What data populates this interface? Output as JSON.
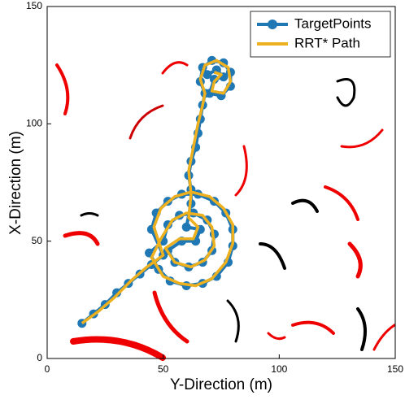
{
  "chart_data": {
    "type": "line",
    "xlabel": "Y-Direction (m)",
    "ylabel": "X-Direction (m)",
    "xlim": [
      0,
      150
    ],
    "ylim": [
      0,
      150
    ],
    "xticks": [
      0,
      50,
      100,
      150
    ],
    "yticks": [
      0,
      50,
      100,
      150
    ],
    "legend": "upper right",
    "series": [
      {
        "name": "TargetPoints",
        "color": "#1f77b4",
        "marker": true,
        "x": [
          15,
          20,
          25,
          30,
          35,
          40,
          45,
          50,
          45,
          47,
          52,
          58,
          65,
          72,
          77,
          80,
          80,
          78,
          73,
          67,
          60,
          53,
          48,
          44,
          50,
          52,
          57,
          63,
          69,
          72,
          71,
          67,
          61,
          55,
          52,
          58,
          64,
          66,
          60,
          62,
          62,
          61,
          62,
          64,
          65,
          66,
          67,
          68,
          66,
          67,
          71,
          76,
          79,
          79,
          75,
          70,
          72,
          76,
          73,
          69
        ],
        "values": [
          15,
          19,
          23,
          28,
          32,
          36,
          40,
          44,
          55,
          62,
          67,
          70,
          70,
          67,
          62,
          55,
          48,
          41,
          35,
          32,
          31,
          33,
          38,
          45,
          50,
          57,
          61,
          62,
          59,
          53,
          46,
          41,
          39,
          41,
          46,
          50,
          50,
          55,
          56,
          66,
          72,
          78,
          84,
          90,
          96,
          102,
          108,
          113,
          118,
          124,
          127,
          126,
          122,
          116,
          112,
          113,
          119,
          120,
          123,
          121
        ]
      },
      {
        "name": "RRT* Path",
        "color": "#edb120",
        "marker": false,
        "x": [
          15,
          22,
          29,
          36,
          43,
          50,
          46,
          49,
          55,
          62,
          70,
          76,
          80,
          80,
          77,
          71,
          64,
          57,
          50,
          45,
          49,
          54,
          60,
          67,
          71,
          72,
          68,
          62,
          55,
          51,
          57,
          63,
          65,
          61,
          62,
          61,
          63,
          65,
          67,
          68,
          66,
          68,
          73,
          78,
          79,
          76,
          71,
          72,
          75,
          72
        ],
        "values": [
          15,
          20,
          26,
          33,
          39,
          44,
          56,
          64,
          69,
          71,
          69,
          64,
          57,
          49,
          41,
          34,
          31,
          32,
          35,
          43,
          51,
          59,
          62,
          61,
          56,
          48,
          42,
          39,
          41,
          47,
          51,
          51,
          56,
          60,
          70,
          80,
          90,
          100,
          108,
          113,
          119,
          125,
          127,
          124,
          118,
          113,
          114,
          118,
          121,
          122
        ]
      }
    ]
  }
}
